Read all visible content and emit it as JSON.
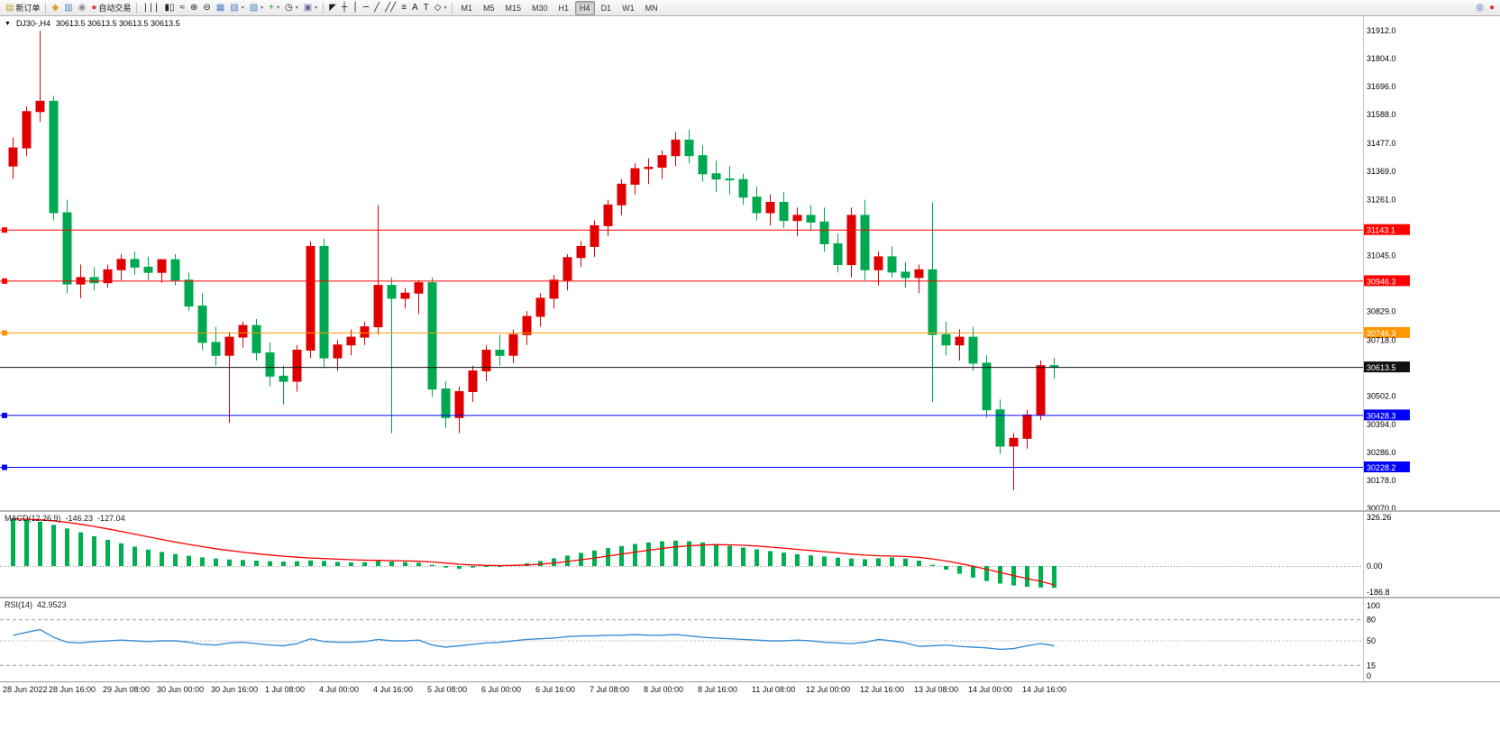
{
  "toolbar": {
    "items": [
      {
        "name": "new-order-button",
        "label": "新订单",
        "glyph": "▤",
        "glyph_color": "#c59b2d",
        "icon": "new-order-icon"
      },
      {
        "name": "separator"
      },
      {
        "name": "favorites-button",
        "glyph": "◆",
        "glyph_color": "#d9a520",
        "icon": "favorites-icon"
      },
      {
        "name": "charts-button",
        "glyph": "▥",
        "glyph_color": "#4f7fbf",
        "icon": "chart-window-icon"
      },
      {
        "name": "market-watch-button",
        "glyph": "◉",
        "glyph_color": "#8c8c8c",
        "icon": "market-watch-icon"
      },
      {
        "name": "auto-trading-button",
        "label": "自动交易",
        "glyph": "●",
        "glyph_color": "#d43c3c",
        "icon": "auto-trading-icon"
      },
      {
        "name": "separator"
      },
      {
        "name": "bar-chart-button",
        "glyph": "|||",
        "icon": "bar-chart-icon",
        "mono": true
      },
      {
        "name": "candlestick-chart-button",
        "glyph": "▮▯",
        "icon": "candlestick-icon"
      },
      {
        "name": "line-chart-button",
        "glyph": "≈",
        "icon": "line-chart-icon"
      },
      {
        "name": "zoom-in-button",
        "glyph": "⊕",
        "icon": "zoom-in-icon"
      },
      {
        "name": "zoom-out-button",
        "glyph": "⊖",
        "icon": "zoom-out-icon"
      },
      {
        "name": "tile-windows-button",
        "glyph": "▦",
        "glyph_color": "#4f7fbf",
        "icon": "tile-windows-icon"
      },
      {
        "name": "new-chart-button",
        "glyph": "▧",
        "glyph_color": "#4f7fbf",
        "icon": "new-chart-icon",
        "dropdown": true
      },
      {
        "name": "profiles-button",
        "glyph": "▨",
        "glyph_color": "#4f7fbf",
        "icon": "profiles-icon",
        "dropdown": true
      },
      {
        "name": "indicators-button",
        "glyph": "+",
        "glyph_color": "#1e8f1e",
        "icon": "indicators-icon",
        "dropdown": true
      },
      {
        "name": "periods-button",
        "glyph": "◷",
        "icon": "clock-icon",
        "dropdown": true
      },
      {
        "name": "templates-button",
        "glyph": "▣",
        "glyph_color": "#7a5c9e",
        "icon": "templates-icon",
        "dropdown": true
      },
      {
        "name": "separator"
      },
      {
        "name": "cursor-button",
        "glyph": "◤",
        "icon": "cursor-icon"
      },
      {
        "name": "crosshair-button",
        "glyph": "┼",
        "icon": "crosshair-icon",
        "mono": true
      },
      {
        "name": "vertical-line-button",
        "glyph": "│",
        "icon": "vertical-line-icon",
        "mono": true
      },
      {
        "name": "horizontal-line-button",
        "glyph": "─",
        "icon": "horizontal-line-icon",
        "mono": true
      },
      {
        "name": "trendline-button",
        "glyph": "╱",
        "icon": "trendline-icon",
        "mono": true
      },
      {
        "name": "channel-button",
        "glyph": "╱╱",
        "icon": "channel-icon",
        "mono": true
      },
      {
        "name": "fibonacci-button",
        "glyph": "≡",
        "icon": "fibonacci-icon"
      },
      {
        "name": "text-button",
        "glyph": "A",
        "icon": "text-icon"
      },
      {
        "name": "text-label-button",
        "glyph": "T",
        "icon": "text-label-icon"
      },
      {
        "name": "arrows-button",
        "glyph": "◇",
        "icon": "arrows-icon",
        "dropdown": true
      },
      {
        "name": "separator"
      },
      {
        "name": "timeframes-slot"
      },
      {
        "name": "search-button",
        "glyph": "◎",
        "glyph_color": "#2a5caa",
        "icon": "search-icon",
        "right": true
      },
      {
        "name": "notification-badge",
        "glyph": "●",
        "glyph_color": "#e03131",
        "icon": "notification-icon"
      }
    ],
    "timeframes": [
      "M1",
      "M5",
      "M15",
      "M30",
      "H1",
      "H4",
      "D1",
      "W1",
      "MN"
    ],
    "active_timeframe": "H4"
  },
  "header": {
    "symbol_timeframe": "DJ30-,H4",
    "ohlc": "30613.5 30613.5 30613.5 30613.5"
  },
  "indicators": {
    "macd": {
      "label": "MACD(12,26,9)",
      "main_value": "-146.23",
      "signal_value": "-127.04"
    },
    "rsi": {
      "label": "RSI(14)",
      "value": "42.9523"
    }
  },
  "chart_data": {
    "type": "candlestick",
    "symbol": "DJ30-",
    "timeframe": "H4",
    "current_price": 30613.5,
    "colors": {
      "bull": "#e00000",
      "bear": "#00a84f",
      "macd_hist": "#00b050",
      "macd_signal": "#ff0000",
      "rsi": "#3b8fd4"
    },
    "price_axis": {
      "max": 31912,
      "min": 30070,
      "ticks": [
        "31912.0",
        "31804.0",
        "31696.0",
        "31588.0",
        "31477.0",
        "31369.0",
        "31261.0",
        "31045.0",
        "30829.0",
        "30718.0",
        "30502.0",
        "30394.0",
        "30286.0",
        "30178.0",
        "30070.0"
      ]
    },
    "hlines": [
      {
        "price": 31143.1,
        "label": "31143.1",
        "color": "#ff0000",
        "marker": true
      },
      {
        "price": 30946.3,
        "label": "30946.3",
        "color": "#ff0000",
        "marker": true
      },
      {
        "price": 30746.3,
        "label": "30746.3",
        "color": "#ff9800",
        "marker": true
      },
      {
        "price": 30613.5,
        "label": "30613.5",
        "color": "#111111",
        "marker": false
      },
      {
        "price": 30428.3,
        "label": "30428.3",
        "color": "#0000ff",
        "marker": true
      },
      {
        "price": 30228.2,
        "label": "30228.2",
        "color": "#0000ff",
        "marker": true
      }
    ],
    "candles_per_label": 4,
    "time_labels": [
      "28 Jun 2022",
      "28 Jun 16:00",
      "29 Jun 08:00",
      "30 Jun 00:00",
      "30 Jun 16:00",
      "1 Jul 08:00",
      "4 Jul 00:00",
      "4 Jul 16:00",
      "5 Jul 08:00",
      "6 Jul 00:00",
      "6 Jul 16:00",
      "7 Jul 08:00",
      "8 Jul 00:00",
      "8 Jul 16:00",
      "11 Jul 08:00",
      "12 Jul 00:00",
      "12 Jul 16:00",
      "13 Jul 08:00",
      "14 Jul 00:00",
      "14 Jul 16:00"
    ],
    "candles": [
      [
        31390,
        31500,
        31340,
        31460
      ],
      [
        31460,
        31620,
        31430,
        31600
      ],
      [
        31600,
        31912,
        31560,
        31640
      ],
      [
        31640,
        31660,
        31180,
        31210
      ],
      [
        31210,
        31260,
        30900,
        30935
      ],
      [
        30935,
        31010,
        30880,
        30960
      ],
      [
        30960,
        31000,
        30910,
        30940
      ],
      [
        30940,
        31010,
        30920,
        30990
      ],
      [
        30990,
        31050,
        30950,
        31030
      ],
      [
        31030,
        31060,
        30970,
        31000
      ],
      [
        31000,
        31040,
        30950,
        30980
      ],
      [
        30980,
        31030,
        30940,
        31029
      ],
      [
        31029,
        31050,
        30930,
        30950
      ],
      [
        30950,
        30980,
        30830,
        30850
      ],
      [
        30850,
        30900,
        30680,
        30710
      ],
      [
        30710,
        30770,
        30620,
        30660
      ],
      [
        30660,
        30750,
        30400,
        30730
      ],
      [
        30730,
        30790,
        30690,
        30775
      ],
      [
        30775,
        30800,
        30640,
        30670
      ],
      [
        30670,
        30710,
        30540,
        30580
      ],
      [
        30580,
        30620,
        30470,
        30560
      ],
      [
        30560,
        30700,
        30520,
        30680
      ],
      [
        30680,
        31100,
        30650,
        31080
      ],
      [
        31080,
        31110,
        30610,
        30650
      ],
      [
        30650,
        30720,
        30600,
        30700
      ],
      [
        30700,
        30760,
        30660,
        30730
      ],
      [
        30730,
        30790,
        30700,
        30770
      ],
      [
        30770,
        31240,
        30740,
        30930
      ],
      [
        30930,
        30960,
        30360,
        30880
      ],
      [
        30880,
        30920,
        30840,
        30900
      ],
      [
        30900,
        30950,
        30820,
        30940
      ],
      [
        30940,
        30960,
        30500,
        30530
      ],
      [
        30530,
        30560,
        30380,
        30420
      ],
      [
        30420,
        30540,
        30360,
        30520
      ],
      [
        30520,
        30620,
        30480,
        30600
      ],
      [
        30600,
        30700,
        30560,
        30680
      ],
      [
        30680,
        30740,
        30620,
        30660
      ],
      [
        30660,
        30760,
        30630,
        30740
      ],
      [
        30740,
        30830,
        30700,
        30810
      ],
      [
        30810,
        30900,
        30770,
        30880
      ],
      [
        30880,
        30970,
        30840,
        30950
      ],
      [
        30950,
        31050,
        30910,
        31037
      ],
      [
        31037,
        31100,
        31000,
        31080
      ],
      [
        31080,
        31180,
        31040,
        31160
      ],
      [
        31160,
        31260,
        31120,
        31240
      ],
      [
        31240,
        31340,
        31200,
        31320
      ],
      [
        31320,
        31400,
        31280,
        31380
      ],
      [
        31380,
        31420,
        31320,
        31385
      ],
      [
        31385,
        31450,
        31340,
        31430
      ],
      [
        31430,
        31520,
        31390,
        31490
      ],
      [
        31490,
        31530,
        31400,
        31430
      ],
      [
        31430,
        31470,
        31330,
        31360
      ],
      [
        31360,
        31410,
        31290,
        31340
      ],
      [
        31340,
        31390,
        31280,
        31338
      ],
      [
        31338,
        31360,
        31240,
        31270
      ],
      [
        31270,
        31310,
        31180,
        31210
      ],
      [
        31210,
        31280,
        31160,
        31250
      ],
      [
        31250,
        31290,
        31150,
        31180
      ],
      [
        31180,
        31230,
        31120,
        31200
      ],
      [
        31200,
        31240,
        31140,
        31174
      ],
      [
        31174,
        31230,
        31060,
        31090
      ],
      [
        31090,
        31130,
        30980,
        31010
      ],
      [
        31010,
        31230,
        30960,
        31200
      ],
      [
        31200,
        31260,
        30950,
        30990
      ],
      [
        30990,
        31060,
        30930,
        31040
      ],
      [
        31040,
        31080,
        30960,
        30981
      ],
      [
        30981,
        31020,
        30920,
        30960
      ],
      [
        30960,
        31010,
        30900,
        30990
      ],
      [
        30990,
        31250,
        30480,
        30740
      ],
      [
        30740,
        30790,
        30660,
        30700
      ],
      [
        30700,
        30760,
        30640,
        30730
      ],
      [
        30730,
        30770,
        30600,
        30630
      ],
      [
        30630,
        30660,
        30420,
        30450
      ],
      [
        30450,
        30490,
        30280,
        30310
      ],
      [
        30310,
        30360,
        30140,
        30340
      ],
      [
        30340,
        30450,
        30300,
        30430
      ],
      [
        30430,
        30640,
        30410,
        30620
      ],
      [
        30620,
        30650,
        30570,
        30613.5
      ]
    ],
    "macd": {
      "hist": [
        320,
        310,
        296,
        276,
        252,
        226,
        200,
        176,
        152,
        130,
        110,
        94,
        80,
        68,
        58,
        50,
        44,
        40,
        36,
        32,
        30,
        32,
        38,
        34,
        28,
        24,
        26,
        34,
        30,
        26,
        22,
        8,
        -10,
        -18,
        -10,
        -4,
        0,
        6,
        18,
        34,
        52,
        70,
        88,
        104,
        120,
        134,
        148,
        158,
        166,
        170,
        166,
        158,
        148,
        136,
        124,
        112,
        100,
        90,
        80,
        72,
        64,
        56,
        50,
        46,
        52,
        58,
        50,
        36,
        8,
        -24,
        -52,
        -78,
        -100,
        -118,
        -130,
        -139,
        -144,
        -146.23
      ],
      "signal": [
        316,
        314,
        310,
        303,
        293,
        280,
        265,
        249,
        232,
        214,
        196,
        178,
        161,
        145,
        130,
        116,
        104,
        93,
        83,
        74,
        66,
        59,
        54,
        50,
        46,
        42,
        39,
        38,
        36,
        34,
        32,
        27,
        20,
        12,
        7,
        4,
        3,
        4,
        7,
        12,
        20,
        30,
        42,
        54,
        67,
        80,
        93,
        106,
        118,
        128,
        136,
        141,
        143,
        142,
        139,
        134,
        127,
        120,
        112,
        104,
        96,
        88,
        80,
        73,
        69,
        67,
        64,
        58,
        48,
        34,
        17,
        -2,
        -22,
        -43,
        -64,
        -84,
        -103,
        -127.04
      ],
      "axis": [
        {
          "v": 326.26,
          "label": "326.26"
        },
        {
          "v": 0,
          "label": "0.00"
        },
        {
          "v": -186.8,
          "label": "-186.8"
        }
      ]
    },
    "rsi": {
      "values": [
        58,
        62,
        66,
        55,
        48,
        47,
        49,
        50,
        51,
        50,
        49,
        50,
        50,
        48,
        45,
        44,
        47,
        48,
        46,
        44,
        43,
        46,
        53,
        49,
        48,
        48,
        49,
        52,
        50,
        50,
        51,
        44,
        41,
        43,
        45,
        47,
        48,
        50,
        52,
        53,
        54,
        56,
        57,
        57,
        58,
        58,
        59,
        58,
        58,
        59,
        57,
        55,
        54,
        53,
        52,
        51,
        50,
        50,
        51,
        50,
        48,
        47,
        46,
        48,
        52,
        50,
        47,
        42,
        43,
        44,
        42,
        41,
        40,
        38,
        39,
        43,
        46,
        42.95
      ],
      "levels": [
        80,
        50,
        15
      ],
      "axis": [
        {
          "v": 100,
          "label": "100"
        },
        {
          "v": 80,
          "label": "80"
        },
        {
          "v": 50,
          "label": "50"
        },
        {
          "v": 15,
          "label": "15"
        },
        {
          "v": 0,
          "label": "0"
        }
      ]
    }
  }
}
